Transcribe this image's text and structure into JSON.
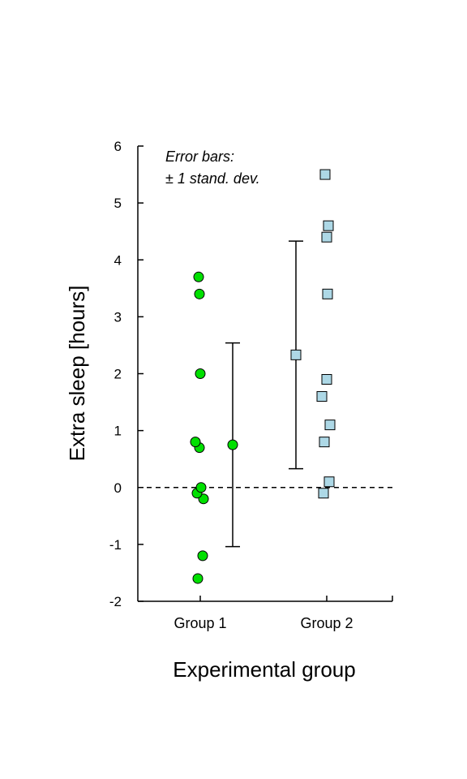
{
  "chart_data": {
    "type": "scatter",
    "title": "",
    "xlabel": "Experimental group",
    "ylabel": "Extra sleep [hours]",
    "ylim": [
      -2,
      6
    ],
    "yticks": [
      "-2",
      "-1",
      "0",
      "1",
      "2",
      "3",
      "4",
      "5",
      "6"
    ],
    "categories": [
      "Group 1",
      "Group 2"
    ],
    "annotation": [
      "Error bars:",
      "± 1 stand. dev."
    ],
    "reference_line": {
      "y": 0,
      "style": "dashed"
    },
    "grid": false,
    "series": [
      {
        "category": "Group 1",
        "marker": "circle",
        "color": "#00e000",
        "values": [
          0.7,
          -1.6,
          -0.2,
          -1.2,
          -0.1,
          3.4,
          3.7,
          0.8,
          0.0,
          2.0
        ],
        "mean": 0.75,
        "sd": 1.79
      },
      {
        "category": "Group 2",
        "marker": "square",
        "color": "#add8e6",
        "values": [
          1.9,
          0.8,
          1.1,
          0.1,
          -0.1,
          4.4,
          5.5,
          1.6,
          4.6,
          3.4
        ],
        "mean": 2.33,
        "sd": 2.0
      }
    ]
  }
}
